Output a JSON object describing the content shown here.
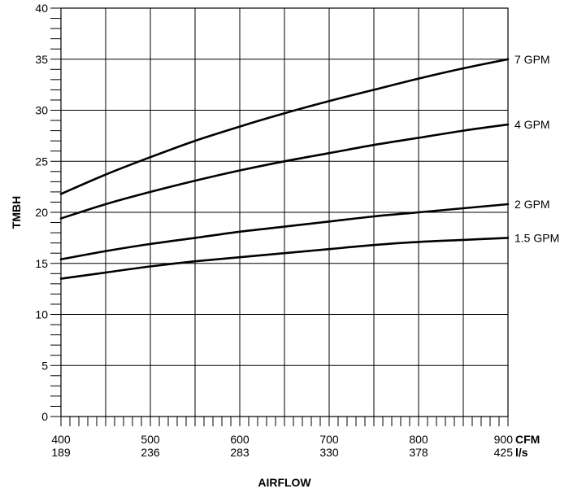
{
  "chart_data": {
    "type": "line",
    "xlabel": "AIRFLOW",
    "ylabel": "TMBH",
    "xlim": [
      400,
      900
    ],
    "ylim": [
      0,
      40
    ],
    "grid": true,
    "x_ticks": [
      {
        "cfm": "400",
        "ls": "189"
      },
      {
        "cfm": "500",
        "ls": "236"
      },
      {
        "cfm": "600",
        "ls": "283"
      },
      {
        "cfm": "700",
        "ls": "330"
      },
      {
        "cfm": "800",
        "ls": "378"
      },
      {
        "cfm": "900",
        "ls": "425"
      }
    ],
    "x_units": {
      "primary": "CFM",
      "secondary": "l/s"
    },
    "y_ticks": [
      "0",
      "5",
      "10",
      "15",
      "20",
      "25",
      "30",
      "35",
      "40"
    ],
    "x": [
      400,
      450,
      500,
      550,
      600,
      650,
      700,
      750,
      800,
      850,
      900
    ],
    "series": [
      {
        "name": "7 GPM",
        "values": [
          21.8,
          23.7,
          25.4,
          27.0,
          28.4,
          29.7,
          30.9,
          32.0,
          33.1,
          34.1,
          35.0
        ]
      },
      {
        "name": "4 GPM",
        "values": [
          19.4,
          20.8,
          22.0,
          23.1,
          24.1,
          25.0,
          25.8,
          26.6,
          27.3,
          28.0,
          28.6
        ]
      },
      {
        "name": "2 GPM",
        "values": [
          15.4,
          16.2,
          16.9,
          17.5,
          18.1,
          18.6,
          19.1,
          19.6,
          20.0,
          20.4,
          20.8
        ]
      },
      {
        "name": "1.5 GPM",
        "values": [
          13.5,
          14.1,
          14.7,
          15.2,
          15.6,
          16.0,
          16.4,
          16.8,
          17.1,
          17.3,
          17.5
        ]
      }
    ]
  }
}
